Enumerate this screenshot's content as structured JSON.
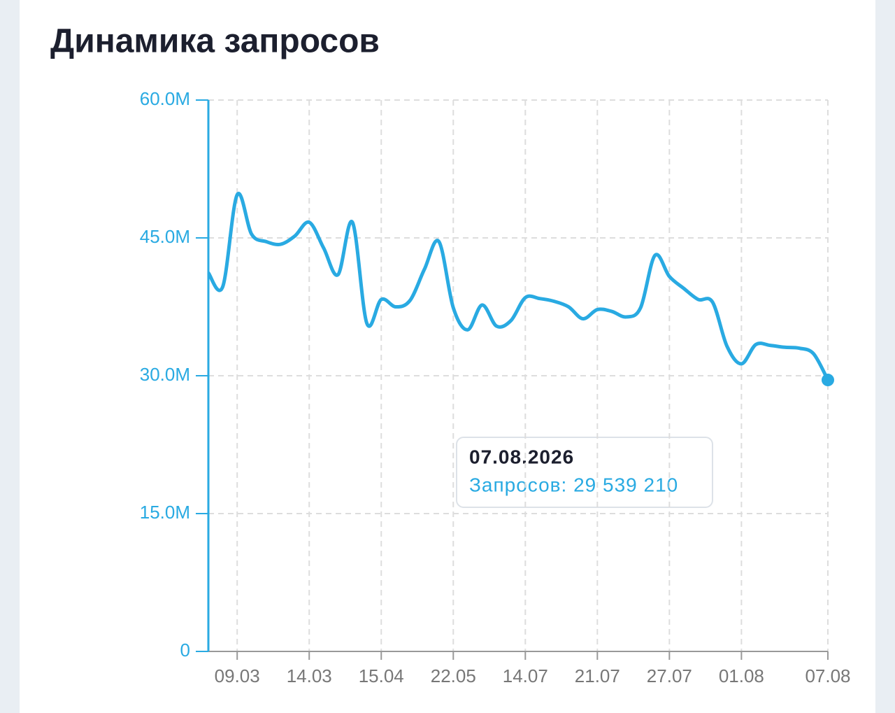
{
  "chart_data": {
    "type": "line",
    "title": "Динамика запросов",
    "categories": [
      null,
      null,
      "09.03",
      null,
      null,
      null,
      null,
      "14.03",
      null,
      null,
      null,
      null,
      "15.04",
      null,
      null,
      null,
      null,
      "22.05",
      null,
      null,
      null,
      null,
      "14.07",
      null,
      null,
      null,
      null,
      "21.07",
      null,
      null,
      null,
      null,
      "27.07",
      null,
      null,
      null,
      null,
      "01.08",
      null,
      null,
      null,
      null,
      null,
      "07.08"
    ],
    "series": [
      {
        "name": "Запросов",
        "color": "#29aae2",
        "values": [
          41.2,
          39.7,
          49.7,
          45.4,
          44.6,
          44.3,
          45.2,
          46.7,
          43.9,
          41.0,
          46.7,
          35.7,
          38.3,
          37.5,
          38.2,
          41.6,
          44.6,
          37.4,
          35.0,
          37.7,
          35.4,
          36.0,
          38.5,
          38.4,
          38.1,
          37.5,
          36.2,
          37.2,
          37.0,
          36.4,
          37.4,
          43.1,
          40.8,
          39.5,
          38.3,
          38.0,
          33.2,
          31.3,
          33.4,
          33.3,
          33.1,
          33.0,
          32.4,
          29.53921
        ]
      }
    ],
    "ylim": [
      0,
      60
    ],
    "yticks": [
      0,
      {
        "value": 15,
        "label": "15.0M"
      },
      {
        "value": 30,
        "label": "30.0M"
      },
      {
        "value": 45,
        "label": "45.0M"
      },
      {
        "value": 60,
        "label": "60.0M"
      }
    ],
    "grid": true,
    "tooltip": {
      "title": "07.08.2026",
      "text": "Запросов: 29 539 210"
    }
  }
}
